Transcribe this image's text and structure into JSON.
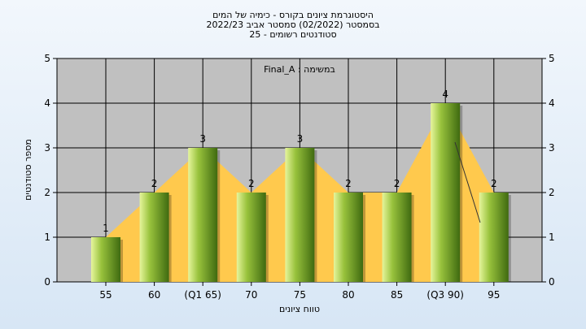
{
  "chart_data": {
    "type": "bar",
    "title_lines": [
      "היסטוגרמת ציונים בקורס - כימיה של המים",
      "בסמסטר  (02/2022)  סמסטר אביב 2022/23",
      "סטודנטים רשומים - 25"
    ],
    "legend_text": "Final_A : במשימה",
    "legend_placement": "top-center",
    "xlabel": "טווח ציונים",
    "ylabel": "מספר סטודנטים",
    "categories": [
      "55",
      "60",
      "(Q1 65)",
      "70",
      "75",
      "80",
      "85",
      "(Q3 90)",
      "95"
    ],
    "values": [
      1,
      2,
      3,
      2,
      3,
      2,
      2,
      4,
      2
    ],
    "ylim": [
      0,
      5
    ],
    "yticks": [
      "0",
      "1",
      "2",
      "3",
      "4",
      "5"
    ],
    "grid": true,
    "colors": {
      "plot_background": "#c0c0c0",
      "grid": "#000000",
      "bar_light": "#e6f59c",
      "bar_mid": "#98c23c",
      "bar_dark": "#3f6a10",
      "area_fill": "#ffc94d"
    }
  }
}
